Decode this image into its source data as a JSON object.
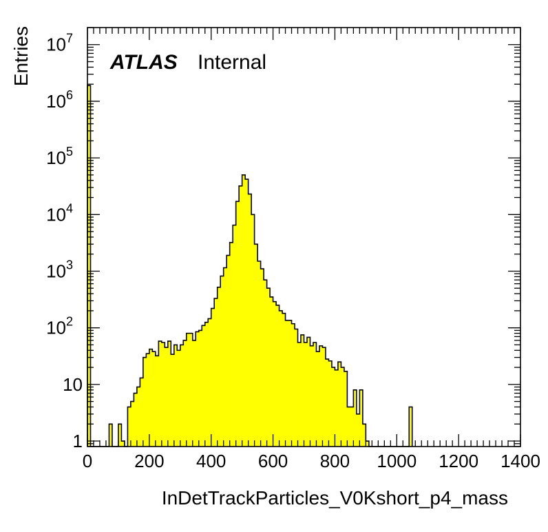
{
  "chart_data": {
    "type": "bar",
    "histogram": true,
    "xlabel": "InDetTrackParticles_V0Kshort_p4_mass",
    "ylabel": "Entries",
    "xlim": [
      0,
      1400
    ],
    "ylim": [
      0.8,
      20000000
    ],
    "yscale": "log",
    "grid": false,
    "legend": "none",
    "fill_color": "#ffff00",
    "line_color": "#000000",
    "bin_width": 10,
    "x_ticks": [
      "0",
      "200",
      "400",
      "600",
      "800",
      "1000",
      "1200",
      "1400"
    ],
    "y_ticks": [
      {
        "mantissa": "1",
        "exp": ""
      },
      {
        "mantissa": "10",
        "exp": ""
      },
      {
        "mantissa": "10",
        "exp": "2"
      },
      {
        "mantissa": "10",
        "exp": "3"
      },
      {
        "mantissa": "10",
        "exp": "4"
      },
      {
        "mantissa": "10",
        "exp": "5"
      },
      {
        "mantissa": "10",
        "exp": "6"
      },
      {
        "mantissa": "10",
        "exp": "7"
      }
    ],
    "series": [
      {
        "x": [
          0,
          10,
          20,
          30,
          40,
          50,
          60,
          70,
          80,
          90,
          100,
          110,
          120,
          130,
          140,
          150,
          160,
          170,
          180,
          190,
          200,
          210,
          220,
          230,
          240,
          250,
          260,
          270,
          280,
          290,
          300,
          310,
          320,
          330,
          340,
          350,
          360,
          370,
          380,
          390,
          400,
          410,
          420,
          430,
          440,
          450,
          460,
          470,
          480,
          490,
          500,
          510,
          520,
          530,
          540,
          550,
          560,
          570,
          580,
          590,
          600,
          610,
          620,
          630,
          640,
          650,
          660,
          670,
          680,
          690,
          700,
          710,
          720,
          730,
          740,
          750,
          760,
          770,
          780,
          790,
          800,
          810,
          820,
          830,
          840,
          850,
          860,
          870,
          880,
          890,
          900,
          910,
          920,
          930,
          940,
          950,
          960,
          970,
          980,
          990,
          1000,
          1010,
          1020,
          1030,
          1040
        ],
        "values": [
          1900000,
          0,
          0,
          0,
          0,
          0,
          0,
          2,
          0,
          0,
          2,
          1,
          0,
          4,
          5,
          7,
          9,
          13,
          30,
          35,
          42,
          38,
          32,
          58,
          55,
          45,
          58,
          34,
          50,
          40,
          50,
          60,
          80,
          80,
          60,
          85,
          90,
          110,
          125,
          145,
          220,
          330,
          520,
          820,
          1150,
          1900,
          3200,
          6500,
          17000,
          32000,
          50000,
          42000,
          23000,
          10000,
          3000,
          1500,
          1100,
          700,
          500,
          350,
          290,
          250,
          200,
          180,
          135,
          135,
          118,
          95,
          55,
          75,
          55,
          68,
          48,
          55,
          38,
          48,
          45,
          28,
          26,
          20,
          18,
          25,
          20,
          17,
          4,
          4,
          8,
          3,
          8,
          2,
          1,
          0,
          0,
          0,
          0,
          0,
          0,
          0,
          0,
          0,
          0,
          0,
          0,
          0,
          4
        ]
      }
    ],
    "annotations": {
      "atlas": "ATLAS",
      "status": "Internal"
    }
  }
}
